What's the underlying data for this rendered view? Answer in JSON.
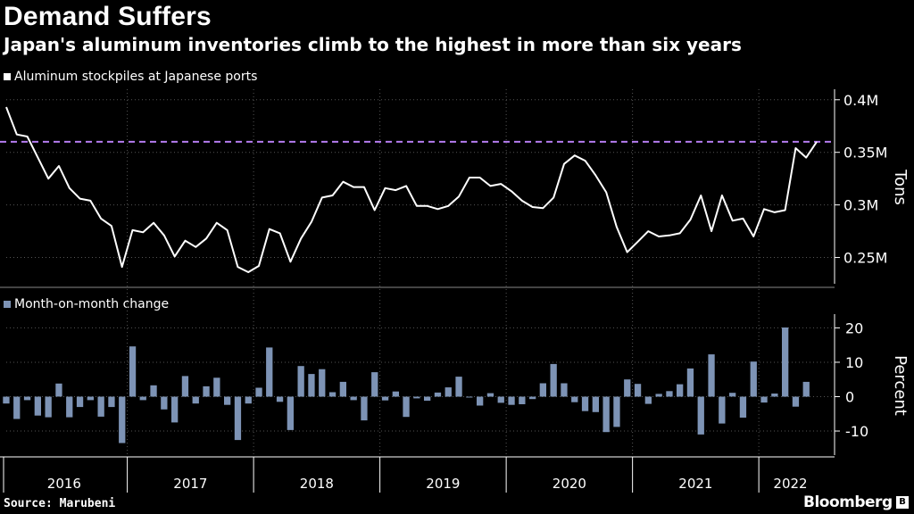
{
  "header": {
    "title": "Demand Suffers",
    "subtitle": "Japan's aluminum inventories climb to the highest in more than six years"
  },
  "footer": {
    "source": "Source: Marubeni",
    "brand": "Bloomberg"
  },
  "colors": {
    "background": "#000000",
    "line": "#ffffff",
    "bars": "#7d93b5",
    "reference_line": "#b57cf0",
    "grid": "#555555"
  },
  "chart_data": [
    {
      "type": "line",
      "legend": "Aluminum stockpiles at Japanese ports",
      "ylabel": "Tons",
      "ylim": [
        225000,
        410000
      ],
      "yticks": [
        {
          "value": 400000,
          "label": "0.4M"
        },
        {
          "value": 350000,
          "label": "0.35M"
        },
        {
          "value": 300000,
          "label": "0.3M"
        },
        {
          "value": 250000,
          "label": "0.25M"
        }
      ],
      "reference_line": {
        "value": 360000,
        "style": "dashed"
      },
      "x_start": "2016-01",
      "x_end": "2022-06",
      "x": [
        "2016-01",
        "2016-02",
        "2016-03",
        "2016-04",
        "2016-05",
        "2016-06",
        "2016-07",
        "2016-08",
        "2016-09",
        "2016-10",
        "2016-11",
        "2016-12",
        "2017-01",
        "2017-02",
        "2017-03",
        "2017-04",
        "2017-05",
        "2017-06",
        "2017-07",
        "2017-08",
        "2017-09",
        "2017-10",
        "2017-11",
        "2017-12",
        "2018-01",
        "2018-02",
        "2018-03",
        "2018-04",
        "2018-05",
        "2018-06",
        "2018-07",
        "2018-08",
        "2018-09",
        "2018-10",
        "2018-11",
        "2018-12",
        "2019-01",
        "2019-02",
        "2019-03",
        "2019-04",
        "2019-05",
        "2019-06",
        "2019-07",
        "2019-08",
        "2019-09",
        "2019-10",
        "2019-11",
        "2019-12",
        "2020-01",
        "2020-02",
        "2020-03",
        "2020-04",
        "2020-05",
        "2020-06",
        "2020-07",
        "2020-08",
        "2020-09",
        "2020-10",
        "2020-11",
        "2020-12",
        "2021-01",
        "2021-02",
        "2021-03",
        "2021-04",
        "2021-05",
        "2021-06",
        "2021-07",
        "2021-08",
        "2021-09",
        "2021-10",
        "2021-11",
        "2021-12",
        "2022-01",
        "2022-02",
        "2022-03",
        "2022-04",
        "2022-05",
        "2022-06"
      ],
      "values": [
        393000,
        367000,
        365000,
        345000,
        325000,
        337000,
        316000,
        306000,
        304000,
        287000,
        280000,
        241000,
        276000,
        274000,
        283000,
        271000,
        251000,
        266000,
        260000,
        268000,
        283000,
        276000,
        241000,
        236000,
        242000,
        277000,
        273000,
        246000,
        268000,
        284000,
        307000,
        309000,
        322000,
        317000,
        317000,
        295000,
        316000,
        314000,
        318000,
        299000,
        299000,
        296000,
        299000,
        308000,
        326000,
        326000,
        318000,
        320000,
        313000,
        304000,
        298000,
        297000,
        307000,
        339000,
        347000,
        342000,
        328000,
        312000,
        279000,
        255000,
        265000,
        275000,
        270000,
        271000,
        273000,
        286000,
        309000,
        275000,
        309000,
        285000,
        287000,
        270000,
        296000,
        293000,
        295000,
        354000,
        345000,
        360000
      ]
    },
    {
      "type": "bar",
      "legend": "Month-on-month change",
      "ylabel": "Percent",
      "ylim": [
        -17,
        24
      ],
      "yticks": [
        {
          "value": 20,
          "label": "20"
        },
        {
          "value": 10,
          "label": "10"
        },
        {
          "value": 0,
          "label": "0"
        },
        {
          "value": -10,
          "label": "-10"
        }
      ],
      "x_labels": [
        "2016",
        "2017",
        "2018",
        "2019",
        "2020",
        "2021",
        "2022"
      ],
      "values": [
        -2,
        -6.5,
        -1,
        -5.5,
        -6,
        3.8,
        -6,
        -3,
        -1,
        -5.8,
        -3,
        -13.5,
        14.6,
        -1,
        3.3,
        -3.7,
        -7.5,
        6,
        -2,
        3,
        5.5,
        -2.4,
        -12.6,
        -2,
        2.6,
        14.3,
        -1.5,
        -9.7,
        8.9,
        6.6,
        8,
        1.3,
        4.3,
        -1,
        -6.9,
        7.1,
        -1.1,
        1.5,
        -5.9,
        -0.5,
        -1.2,
        1.2,
        2.7,
        5.8,
        0,
        -2.6,
        1,
        -1.8,
        -2.4,
        -2.2,
        -0.7,
        3.9,
        9.5,
        3.9,
        -1.6,
        -4.2,
        -4.5,
        -10.3,
        -8.8,
        5,
        3.7,
        -2.1,
        0.8,
        1.6,
        3.6,
        8.2,
        -11,
        12.3,
        -7.8,
        1.1,
        -6.1,
        10.2,
        -1.7,
        0.9,
        20.1,
        -2.9,
        4.3
      ]
    }
  ]
}
